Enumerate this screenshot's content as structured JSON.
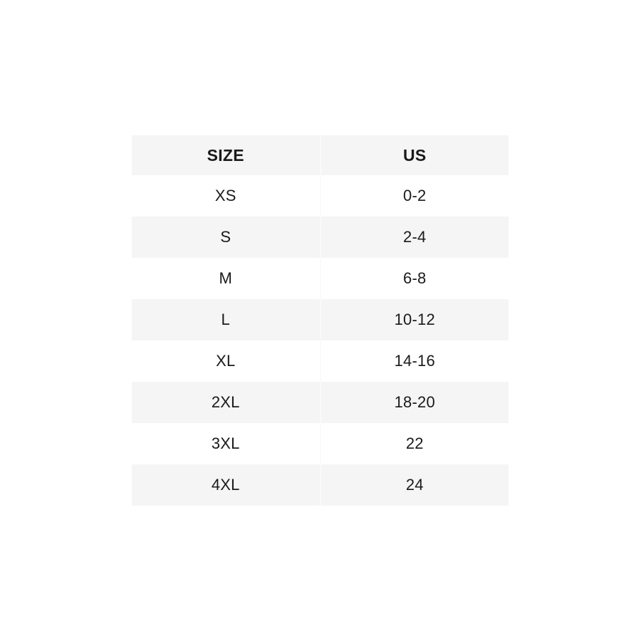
{
  "page": {
    "background": "#ffffff"
  },
  "chart_data": {
    "type": "table",
    "title": "",
    "columns": [
      "SIZE",
      "US"
    ],
    "rows": [
      [
        "XS",
        "0-2"
      ],
      [
        "S",
        "2-4"
      ],
      [
        "M",
        "6-8"
      ],
      [
        "L",
        "10-12"
      ],
      [
        "XL",
        "14-16"
      ],
      [
        "2XL",
        "18-20"
      ],
      [
        "3XL",
        "22"
      ],
      [
        "4XL",
        "24"
      ]
    ],
    "layout": {
      "legend": "none",
      "grid": "off",
      "stripe_rows": "alternating"
    },
    "colors": {
      "header_background": "#f5f5f6",
      "stripe_background": "#f5f5f6",
      "row_background": "#ffffff",
      "column_divider": "#fafafa",
      "text": "#1a1a1a"
    }
  }
}
